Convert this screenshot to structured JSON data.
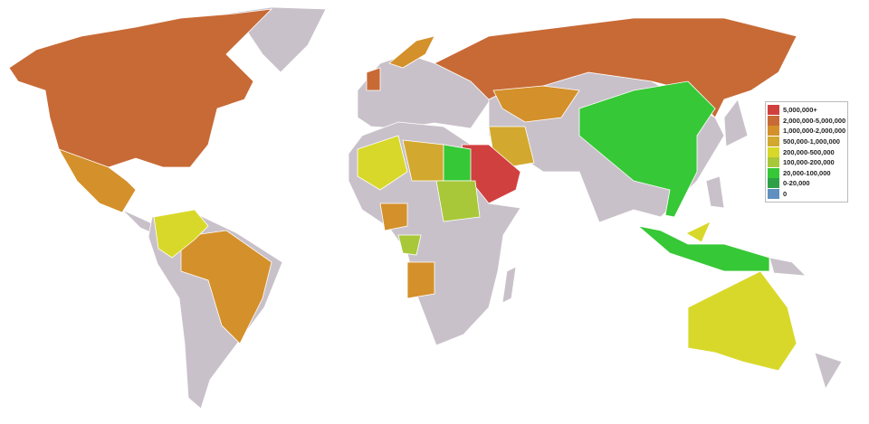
{
  "legend": [
    {
      "label": "5,000,000+",
      "color": "#d0403f"
    },
    {
      "label": "2,000,000-5,000,000",
      "color": "#c86a36"
    },
    {
      "label": "1,000,000-2,000,000",
      "color": "#d4902a"
    },
    {
      "label": "500,000-1,000,000",
      "color": "#d2a92e"
    },
    {
      "label": "200,000-500,000",
      "color": "#d8d82a"
    },
    {
      "label": "100,000-200,000",
      "color": "#a8c83a"
    },
    {
      "label": "20,000-100,000",
      "color": "#36c836"
    },
    {
      "label": "0-20,000",
      "color": "#2ea046"
    },
    {
      "label": "0",
      "color": "#6090c0"
    }
  ],
  "land_color": "#c9c1c9",
  "regions": [
    {
      "name": "north-america",
      "bin": 1
    },
    {
      "name": "mexico",
      "bin": 2
    },
    {
      "name": "brazil",
      "bin": 2
    },
    {
      "name": "colombia-venezuela",
      "bin": 4
    },
    {
      "name": "uk",
      "bin": 1
    },
    {
      "name": "norway",
      "bin": 2
    },
    {
      "name": "russia",
      "bin": 1
    },
    {
      "name": "kazakhstan",
      "bin": 2
    },
    {
      "name": "china",
      "bin": 6
    },
    {
      "name": "iran",
      "bin": 3
    },
    {
      "name": "saudi-arabia",
      "bin": 0
    },
    {
      "name": "algeria",
      "bin": 4
    },
    {
      "name": "libya",
      "bin": 3
    },
    {
      "name": "egypt",
      "bin": 6
    },
    {
      "name": "sudan",
      "bin": 5
    },
    {
      "name": "nigeria",
      "bin": 2
    },
    {
      "name": "angola",
      "bin": 2
    },
    {
      "name": "gabon-congo",
      "bin": 5
    },
    {
      "name": "indonesia",
      "bin": 6
    },
    {
      "name": "malaysia",
      "bin": 4
    },
    {
      "name": "australia",
      "bin": 4
    }
  ]
}
